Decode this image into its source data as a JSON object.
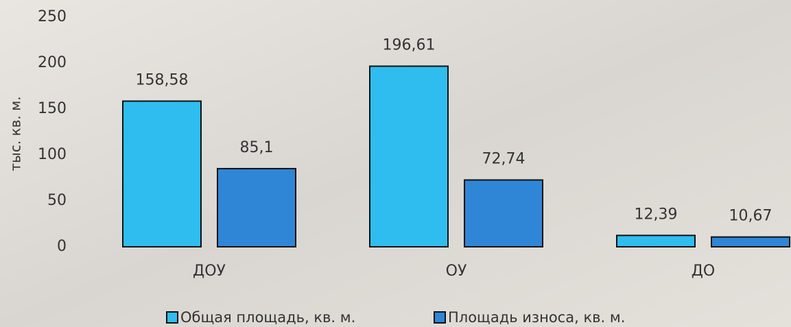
{
  "chart_data": {
    "type": "bar",
    "y_label": "тыс. кв. м.",
    "categories": [
      "ДОУ",
      "ОУ",
      "ДО"
    ],
    "series": [
      {
        "name": "Общая площадь, кв. м.",
        "color": "#2fbdf0",
        "values": [
          158.58,
          196.61,
          12.39
        ],
        "value_labels": [
          "158,58",
          "196,61",
          "12,39"
        ]
      },
      {
        "name": "Площадь износа, кв. м.",
        "color": "#2f86d6",
        "values": [
          85.1,
          72.74,
          10.67
        ],
        "value_labels": [
          "85,1",
          "72,74",
          "10,67"
        ]
      }
    ],
    "ylim": [
      0,
      250
    ],
    "yticks": [
      0,
      50,
      100,
      150,
      200,
      250
    ],
    "grid": false,
    "legend": "bottom"
  }
}
